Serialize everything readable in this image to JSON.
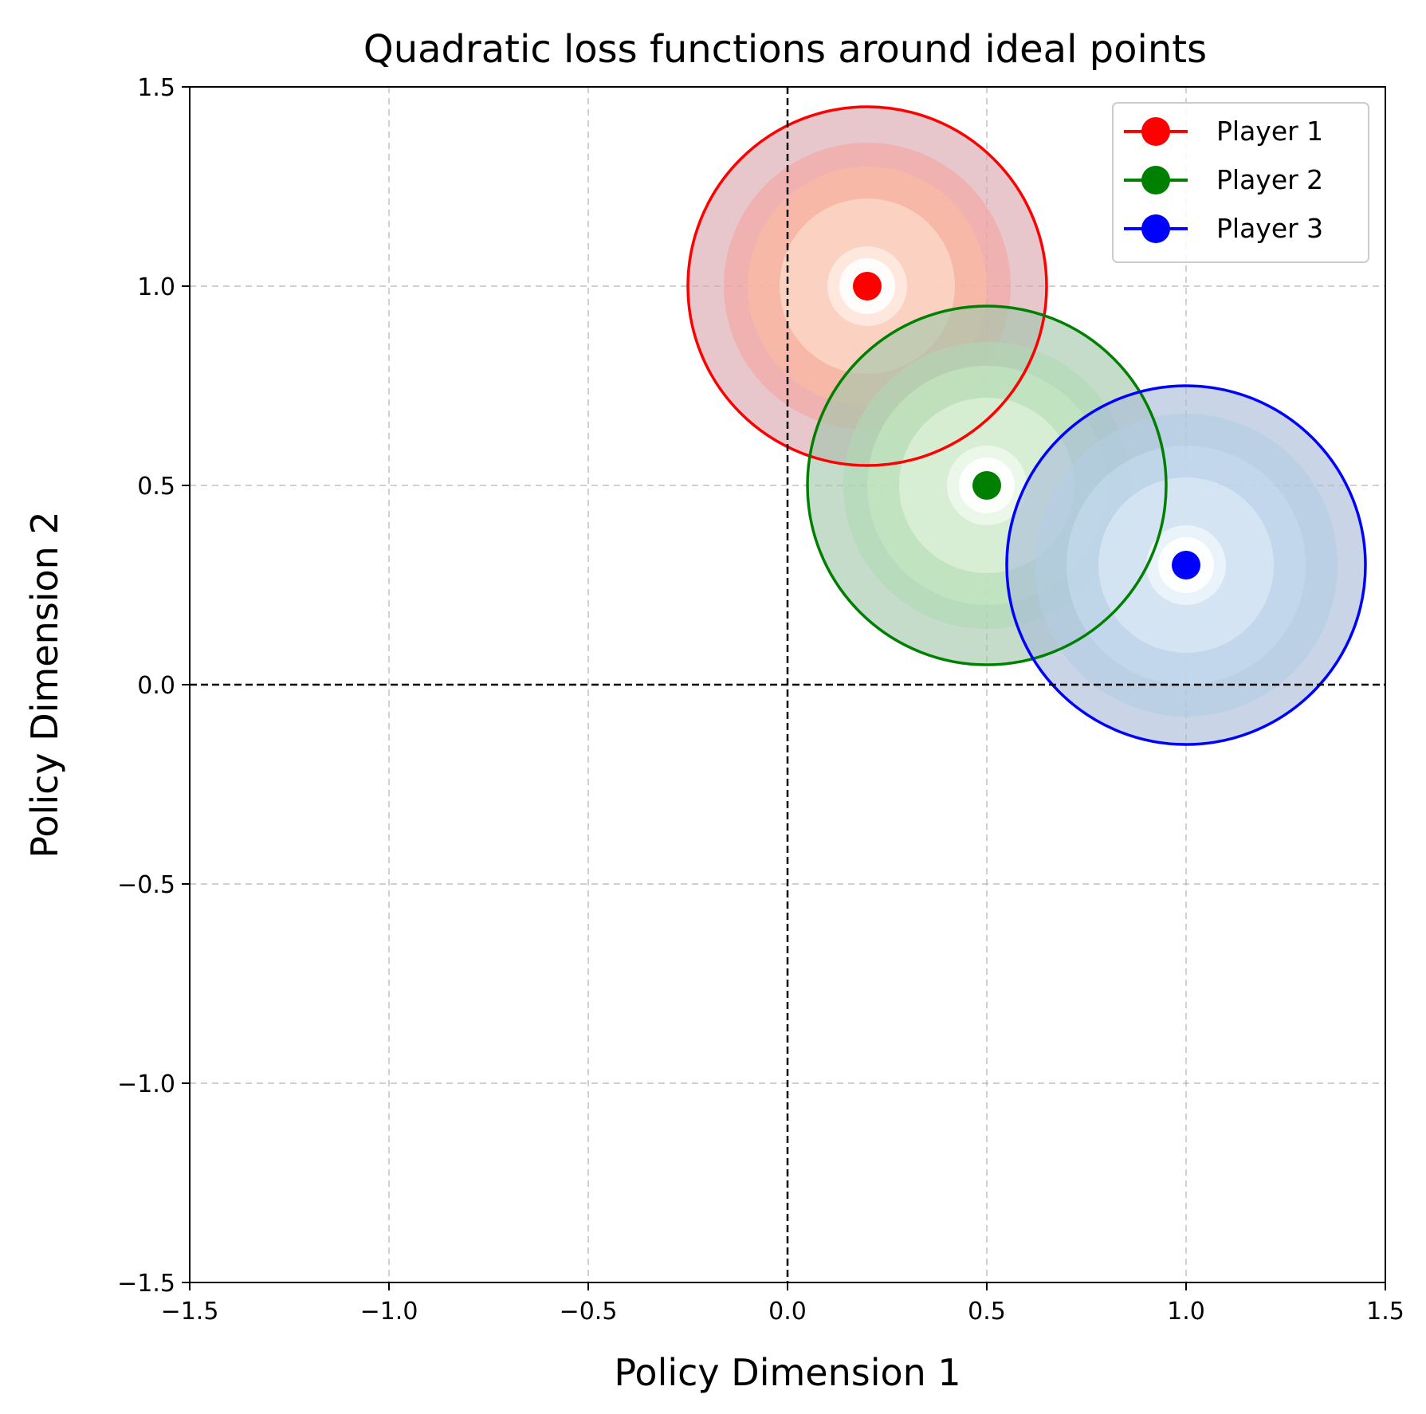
{
  "chart_data": {
    "type": "scatter",
    "title": "Quadratic loss functions around ideal points",
    "xlabel": "Policy Dimension 1",
    "ylabel": "Policy Dimension 2",
    "xlim": [
      -1.5,
      1.5
    ],
    "ylim": [
      -1.5,
      1.5
    ],
    "xticks": [
      -1.5,
      -1.0,
      -0.5,
      0.0,
      0.5,
      1.0,
      1.5
    ],
    "yticks": [
      -1.5,
      -1.0,
      -0.5,
      0.0,
      0.5,
      1.0,
      1.5
    ],
    "xtick_labels": [
      "−1.5",
      "−1.0",
      "−0.5",
      "0.0",
      "0.5",
      "1.0",
      "1.5"
    ],
    "ytick_labels": [
      "−1.5",
      "−1.0",
      "−0.5",
      "0.0",
      "0.5",
      "1.0",
      "1.5"
    ],
    "grid": true,
    "reference_lines": {
      "x": 0,
      "y": 0,
      "style": "dashed",
      "color": "#000000"
    },
    "legend_position": "top-right",
    "series": [
      {
        "name": "Player 1",
        "x": 0.2,
        "y": 1.0,
        "color": "#ff0000",
        "boundary_radius": 0.45,
        "contour_radii": [
          0.1,
          0.22,
          0.3,
          0.36,
          0.45
        ],
        "contour_fills": [
          "#fff5f0",
          "#fee0d2",
          "#fcbba1",
          "#f4a7a0",
          "#d9a3ad"
        ]
      },
      {
        "name": "Player 2",
        "x": 0.5,
        "y": 0.5,
        "color": "#008000",
        "boundary_radius": 0.45,
        "contour_radii": [
          0.1,
          0.22,
          0.3,
          0.36,
          0.45
        ],
        "contour_fills": [
          "#f7fcf5",
          "#e5f5e0",
          "#c7e9c0",
          "#b0d9b4",
          "#a2c6ab"
        ]
      },
      {
        "name": "Player 3",
        "x": 1.0,
        "y": 0.3,
        "color": "#0000ff",
        "boundary_radius": 0.45,
        "contour_radii": [
          0.1,
          0.22,
          0.3,
          0.38,
          0.45
        ],
        "contour_fills": [
          "#f7fbff",
          "#deebf7",
          "#c6dbef",
          "#b3cde3",
          "#a8bcd8"
        ]
      }
    ]
  }
}
